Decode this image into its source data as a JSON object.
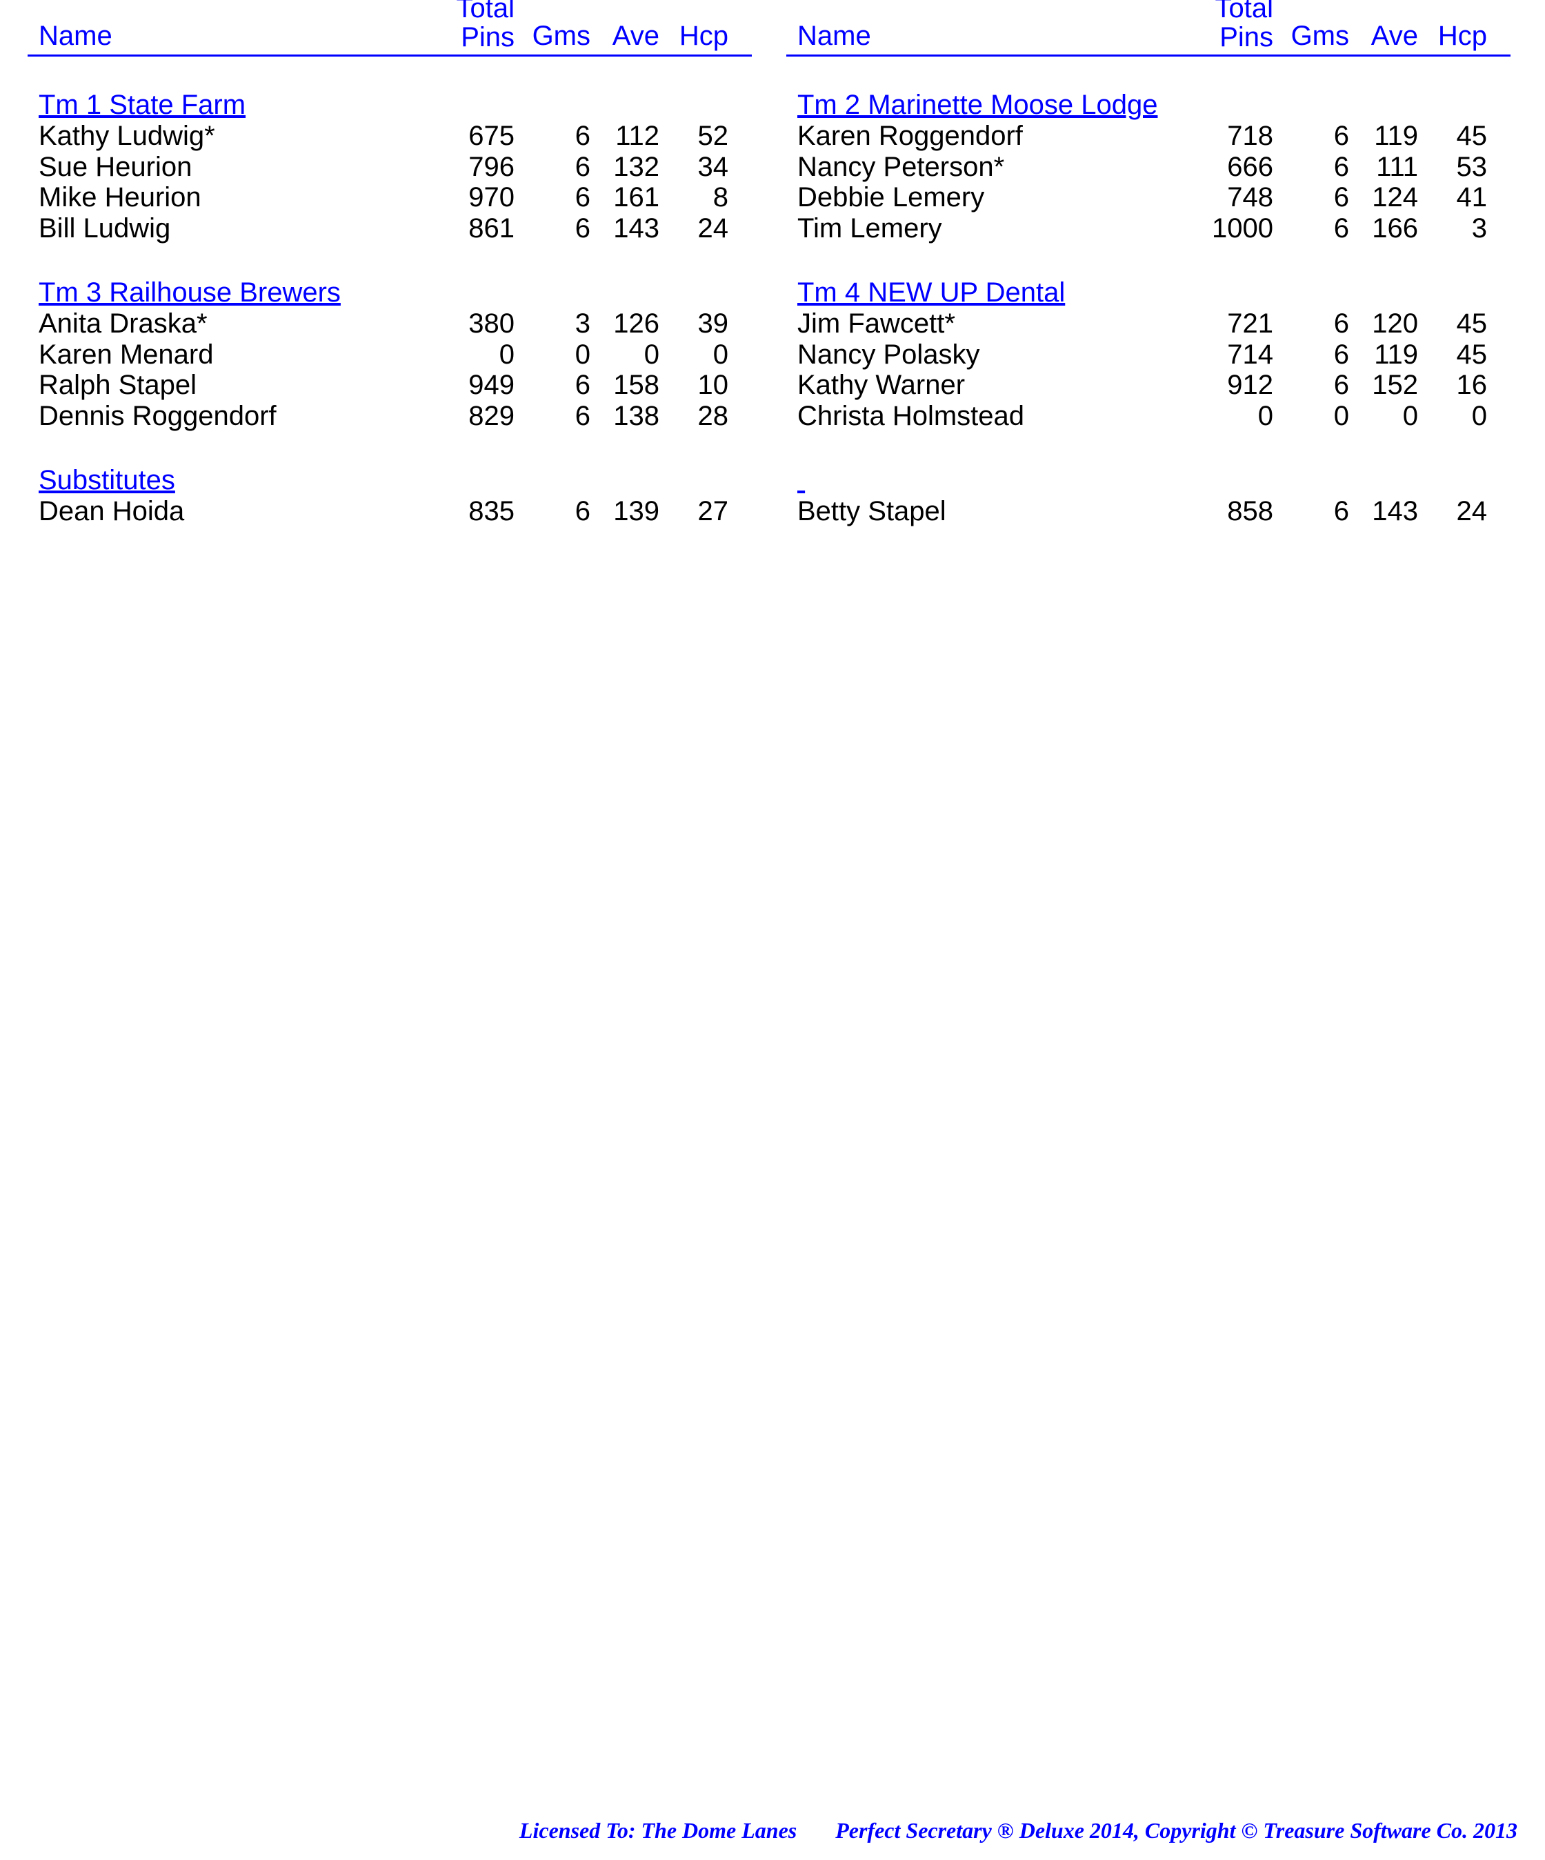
{
  "colors": {
    "header_text": "#0000ff",
    "header_rule": "#0000ff",
    "body_text": "#000000",
    "footer_text": "#0000ff",
    "background": "#ffffff"
  },
  "headers": {
    "name": "Name",
    "pins_top": "Total",
    "pins": "Pins",
    "gms": "Gms",
    "ave": "Ave",
    "hcp": "Hcp"
  },
  "left": {
    "sections": [
      {
        "title": "Tm 1 State Farm",
        "rows": [
          {
            "name": "Kathy Ludwig*",
            "pins": "675",
            "gms": "6",
            "ave": "112",
            "hcp": "52"
          },
          {
            "name": "Sue Heurion",
            "pins": "796",
            "gms": "6",
            "ave": "132",
            "hcp": "34"
          },
          {
            "name": "Mike Heurion",
            "pins": "970",
            "gms": "6",
            "ave": "161",
            "hcp": "8"
          },
          {
            "name": "Bill Ludwig",
            "pins": "861",
            "gms": "6",
            "ave": "143",
            "hcp": "24"
          }
        ]
      },
      {
        "title": "Tm 3 Railhouse Brewers",
        "rows": [
          {
            "name": "Anita Draska*",
            "pins": "380",
            "gms": "3",
            "ave": "126",
            "hcp": "39"
          },
          {
            "name": "Karen Menard",
            "pins": "0",
            "gms": "0",
            "ave": "0",
            "hcp": "0"
          },
          {
            "name": "Ralph Stapel",
            "pins": "949",
            "gms": "6",
            "ave": "158",
            "hcp": "10"
          },
          {
            "name": "Dennis Roggendorf",
            "pins": "829",
            "gms": "6",
            "ave": "138",
            "hcp": "28"
          }
        ]
      },
      {
        "title": "Substitutes",
        "rows": [
          {
            "name": "Dean Hoida",
            "pins": "835",
            "gms": "6",
            "ave": "139",
            "hcp": "27"
          }
        ]
      }
    ]
  },
  "right": {
    "sections": [
      {
        "title": "Tm 2 Marinette Moose Lodge",
        "rows": [
          {
            "name": "Karen Roggendorf",
            "pins": "718",
            "gms": "6",
            "ave": "119",
            "hcp": "45"
          },
          {
            "name": "Nancy Peterson*",
            "pins": "666",
            "gms": "6",
            "ave": "111",
            "hcp": "53"
          },
          {
            "name": "Debbie Lemery",
            "pins": "748",
            "gms": "6",
            "ave": "124",
            "hcp": "41"
          },
          {
            "name": "Tim Lemery",
            "pins": "1000",
            "gms": "6",
            "ave": "166",
            "hcp": "3"
          }
        ]
      },
      {
        "title": "Tm 4 NEW UP Dental",
        "rows": [
          {
            "name": "Jim Fawcett*",
            "pins": "721",
            "gms": "6",
            "ave": "120",
            "hcp": "45"
          },
          {
            "name": "Nancy Polasky",
            "pins": "714",
            "gms": "6",
            "ave": "119",
            "hcp": "45"
          },
          {
            "name": "Kathy Warner",
            "pins": "912",
            "gms": "6",
            "ave": "152",
            "hcp": "16"
          },
          {
            "name": "Christa Holmstead",
            "pins": "0",
            "gms": "0",
            "ave": "0",
            "hcp": "0"
          }
        ]
      },
      {
        "title": "",
        "rows": [
          {
            "name": "Betty Stapel",
            "pins": "858",
            "gms": "6",
            "ave": "143",
            "hcp": "24"
          }
        ]
      }
    ]
  },
  "footer": {
    "left": "Licensed To: The Dome Lanes",
    "right": "Perfect Secretary ® Deluxe  2014, Copyright © Treasure Software Co. 2013"
  }
}
